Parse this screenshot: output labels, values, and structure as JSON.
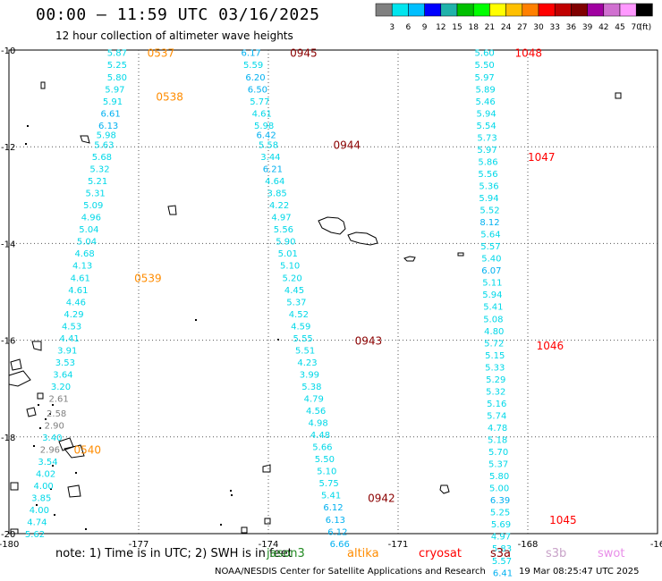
{
  "title": "00:00 – 11:59 UTC 03/16/2025",
  "subtitle": "12 hour collection of altimeter wave heights",
  "note": "note:  1) Time is in UTC; 2) SWH is in feet",
  "credit": "NOAA/NESDIS Center for Satellite Applications and Research",
  "generated": "19 Mar 08:25:47 UTC 2025",
  "satellites": [
    {
      "name": "jason3",
      "color": "#228b22"
    },
    {
      "name": "altika",
      "color": "#ff8c00"
    },
    {
      "name": "cryosat",
      "color": "#ff0000"
    },
    {
      "name": "s3a",
      "color": "#8b0000"
    },
    {
      "name": "s3b",
      "color": "#c8a2c8"
    },
    {
      "name": "swot",
      "color": "#e88ee8"
    }
  ],
  "color_scale": {
    "colors": [
      "#808080",
      "#00e5ee",
      "#00bfff",
      "#0000ff",
      "#20b2aa",
      "#00c000",
      "#00ff00",
      "#ffff00",
      "#ffc000",
      "#ff8000",
      "#ff0000",
      "#c00000",
      "#800000",
      "#a000a0",
      "#d070d0",
      "#ff99ff",
      "#000000"
    ],
    "labels": [
      "3",
      "6",
      "9",
      "12",
      "15",
      "18",
      "21",
      "24",
      "27",
      "30",
      "33",
      "36",
      "39",
      "42",
      "45",
      "70",
      "(ft)"
    ]
  },
  "axes": {
    "lon_ticks": [
      "-180",
      "-177",
      "-174",
      "-171",
      "-168",
      "-16"
    ],
    "lat_ticks": [
      "-10",
      "-12",
      "-14",
      "-16",
      "-18",
      "-20"
    ]
  },
  "chart_data": {
    "type": "map",
    "lon_range": [
      -180,
      -165
    ],
    "lat_range": [
      -20,
      -10
    ],
    "grid": true,
    "tracks": [
      {
        "label": "0537",
        "label_color": "#ff8c00",
        "label_lon": -176.8,
        "label_lat": -10.05
      },
      {
        "label": "0538",
        "label_color": "#ff8c00",
        "label_lon": -176.6,
        "label_lat": -10.95
      },
      {
        "label": "0539",
        "label_color": "#ff8c00",
        "label_lon": -177.1,
        "label_lat": -14.7
      },
      {
        "label": "0540",
        "label_color": "#ff8c00",
        "label_lon": -178.5,
        "label_lat": -18.25
      },
      {
        "label": "0945",
        "label_color": "#8b0000",
        "label_lon": -173.5,
        "label_lat": -10.05
      },
      {
        "label": "0944",
        "label_color": "#8b0000",
        "label_lon": -172.5,
        "label_lat": -11.95
      },
      {
        "label": "0943",
        "label_color": "#8b0000",
        "label_lon": -172.0,
        "label_lat": -16.0
      },
      {
        "label": "0942",
        "label_color": "#8b0000",
        "label_lon": -171.7,
        "label_lat": -19.25
      },
      {
        "label": "1048",
        "label_color": "#ff0000",
        "label_lon": -168.3,
        "label_lat": -10.05
      },
      {
        "label": "1047",
        "label_color": "#ff0000",
        "label_lon": -168.0,
        "label_lat": -12.2
      },
      {
        "label": "1046",
        "label_color": "#ff0000",
        "label_lon": -167.8,
        "label_lat": -16.1
      },
      {
        "label": "1045",
        "label_color": "#ff0000",
        "label_lon": -167.5,
        "label_lat": -19.7
      }
    ],
    "points": [
      {
        "lon": -177.5,
        "lat": -10.05,
        "v": "5.87"
      },
      {
        "lon": -177.5,
        "lat": -10.3,
        "v": "5.25"
      },
      {
        "lon": -177.5,
        "lat": -10.55,
        "v": "5.80"
      },
      {
        "lon": -177.55,
        "lat": -10.8,
        "v": "5.97"
      },
      {
        "lon": -177.6,
        "lat": -11.05,
        "v": "5.91"
      },
      {
        "lon": -177.65,
        "lat": -11.3,
        "v": "6.61"
      },
      {
        "lon": -177.7,
        "lat": -11.55,
        "v": "6.13"
      },
      {
        "lon": -177.75,
        "lat": -11.75,
        "v": "5.98"
      },
      {
        "lon": -177.8,
        "lat": -11.95,
        "v": "5.63"
      },
      {
        "lon": -177.85,
        "lat": -12.2,
        "v": "5.68"
      },
      {
        "lon": -177.9,
        "lat": -12.45,
        "v": "5.32"
      },
      {
        "lon": -177.95,
        "lat": -12.7,
        "v": "5.21"
      },
      {
        "lon": -178.0,
        "lat": -12.95,
        "v": "5.31"
      },
      {
        "lon": -178.05,
        "lat": -13.2,
        "v": "5.09"
      },
      {
        "lon": -178.1,
        "lat": -13.45,
        "v": "4.96"
      },
      {
        "lon": -178.15,
        "lat": -13.7,
        "v": "5.04"
      },
      {
        "lon": -178.2,
        "lat": -13.95,
        "v": "5.04"
      },
      {
        "lon": -178.25,
        "lat": -14.2,
        "v": "4.68"
      },
      {
        "lon": -178.3,
        "lat": -14.45,
        "v": "4.13"
      },
      {
        "lon": -178.35,
        "lat": -14.7,
        "v": "4.61"
      },
      {
        "lon": -178.4,
        "lat": -14.95,
        "v": "4.61"
      },
      {
        "lon": -178.45,
        "lat": -15.2,
        "v": "4.46"
      },
      {
        "lon": -178.5,
        "lat": -15.45,
        "v": "4.29"
      },
      {
        "lon": -178.55,
        "lat": -15.7,
        "v": "4.53"
      },
      {
        "lon": -178.6,
        "lat": -15.95,
        "v": "4.41"
      },
      {
        "lon": -178.65,
        "lat": -16.2,
        "v": "3.91"
      },
      {
        "lon": -178.7,
        "lat": -16.45,
        "v": "3.53"
      },
      {
        "lon": -178.75,
        "lat": -16.7,
        "v": "3.64"
      },
      {
        "lon": -178.8,
        "lat": -16.95,
        "v": "3.20"
      },
      {
        "lon": -178.85,
        "lat": -17.2,
        "v": "2.61"
      },
      {
        "lon": -178.9,
        "lat": -17.5,
        "v": "2.58"
      },
      {
        "lon": -178.95,
        "lat": -17.75,
        "v": "2.90"
      },
      {
        "lon": -179.0,
        "lat": -18.0,
        "v": "3.40"
      },
      {
        "lon": -179.05,
        "lat": -18.25,
        "v": "2.96"
      },
      {
        "lon": -179.1,
        "lat": -18.5,
        "v": "3.54"
      },
      {
        "lon": -179.15,
        "lat": -18.75,
        "v": "4.02"
      },
      {
        "lon": -179.2,
        "lat": -19.0,
        "v": "4.00"
      },
      {
        "lon": -179.25,
        "lat": -19.25,
        "v": "3.85"
      },
      {
        "lon": -179.3,
        "lat": -19.5,
        "v": "4.00"
      },
      {
        "lon": -179.35,
        "lat": -19.75,
        "v": "4.74"
      },
      {
        "lon": -179.4,
        "lat": -20.0,
        "v": "5.62"
      },
      {
        "lon": -174.4,
        "lat": -10.05,
        "v": "6.17"
      },
      {
        "lon": -174.35,
        "lat": -10.3,
        "v": "5.59"
      },
      {
        "lon": -174.3,
        "lat": -10.55,
        "v": "6.20"
      },
      {
        "lon": -174.25,
        "lat": -10.8,
        "v": "6.50"
      },
      {
        "lon": -174.2,
        "lat": -11.05,
        "v": "5.77"
      },
      {
        "lon": -174.15,
        "lat": -11.3,
        "v": "4.61"
      },
      {
        "lon": -174.1,
        "lat": -11.55,
        "v": "5.98"
      },
      {
        "lon": -174.05,
        "lat": -11.75,
        "v": "6.42"
      },
      {
        "lon": -174.0,
        "lat": -11.95,
        "v": "5.58"
      },
      {
        "lon": -173.95,
        "lat": -12.2,
        "v": "3.44"
      },
      {
        "lon": -173.9,
        "lat": -12.45,
        "v": "6.21"
      },
      {
        "lon": -173.85,
        "lat": -12.7,
        "v": "4.64"
      },
      {
        "lon": -173.8,
        "lat": -12.95,
        "v": "3.85"
      },
      {
        "lon": -173.75,
        "lat": -13.2,
        "v": "4.22"
      },
      {
        "lon": -173.7,
        "lat": -13.45,
        "v": "4.97"
      },
      {
        "lon": -173.65,
        "lat": -13.7,
        "v": "5.56"
      },
      {
        "lon": -173.6,
        "lat": -13.95,
        "v": "5.90"
      },
      {
        "lon": -173.55,
        "lat": -14.2,
        "v": "5.01"
      },
      {
        "lon": -173.5,
        "lat": -14.45,
        "v": "5.10"
      },
      {
        "lon": -173.45,
        "lat": -14.7,
        "v": "5.20"
      },
      {
        "lon": -173.4,
        "lat": -14.95,
        "v": "4.45"
      },
      {
        "lon": -173.35,
        "lat": -15.2,
        "v": "5.37"
      },
      {
        "lon": -173.3,
        "lat": -15.45,
        "v": "4.52"
      },
      {
        "lon": -173.25,
        "lat": -15.7,
        "v": "4.59"
      },
      {
        "lon": -173.2,
        "lat": -15.95,
        "v": "5.55"
      },
      {
        "lon": -173.15,
        "lat": -16.2,
        "v": "5.51"
      },
      {
        "lon": -173.1,
        "lat": -16.45,
        "v": "4.23"
      },
      {
        "lon": -173.05,
        "lat": -16.7,
        "v": "3.99"
      },
      {
        "lon": -173.0,
        "lat": -16.95,
        "v": "5.38"
      },
      {
        "lon": -172.95,
        "lat": -17.2,
        "v": "4.79"
      },
      {
        "lon": -172.9,
        "lat": -17.45,
        "v": "4.56"
      },
      {
        "lon": -172.85,
        "lat": -17.7,
        "v": "4.98"
      },
      {
        "lon": -172.8,
        "lat": -17.95,
        "v": "4.48"
      },
      {
        "lon": -172.75,
        "lat": -18.2,
        "v": "5.66"
      },
      {
        "lon": -172.7,
        "lat": -18.45,
        "v": "5.50"
      },
      {
        "lon": -172.65,
        "lat": -18.7,
        "v": "5.10"
      },
      {
        "lon": -172.6,
        "lat": -18.95,
        "v": "5.75"
      },
      {
        "lon": -172.55,
        "lat": -19.2,
        "v": "5.41"
      },
      {
        "lon": -172.5,
        "lat": -19.45,
        "v": "6.12"
      },
      {
        "lon": -172.45,
        "lat": -19.7,
        "v": "6.13"
      },
      {
        "lon": -172.4,
        "lat": -19.95,
        "v": "6.12"
      },
      {
        "lon": -172.35,
        "lat": -20.2,
        "v": "6.66"
      },
      {
        "lon": -169.0,
        "lat": -10.05,
        "v": "5.60"
      },
      {
        "lon": -169.0,
        "lat": -10.3,
        "v": "5.50"
      },
      {
        "lon": -169.0,
        "lat": -10.55,
        "v": "5.97"
      },
      {
        "lon": -168.98,
        "lat": -10.8,
        "v": "5.89"
      },
      {
        "lon": -168.98,
        "lat": -11.05,
        "v": "5.46"
      },
      {
        "lon": -168.96,
        "lat": -11.3,
        "v": "5.94"
      },
      {
        "lon": -168.96,
        "lat": -11.55,
        "v": "5.54"
      },
      {
        "lon": -168.94,
        "lat": -11.8,
        "v": "5.73"
      },
      {
        "lon": -168.94,
        "lat": -12.05,
        "v": "5.97"
      },
      {
        "lon": -168.92,
        "lat": -12.3,
        "v": "5.86"
      },
      {
        "lon": -168.92,
        "lat": -12.55,
        "v": "5.56"
      },
      {
        "lon": -168.9,
        "lat": -12.8,
        "v": "5.36"
      },
      {
        "lon": -168.9,
        "lat": -13.05,
        "v": "5.94"
      },
      {
        "lon": -168.88,
        "lat": -13.3,
        "v": "5.52"
      },
      {
        "lon": -168.88,
        "lat": -13.55,
        "v": "8.12"
      },
      {
        "lon": -168.86,
        "lat": -13.8,
        "v": "5.64"
      },
      {
        "lon": -168.86,
        "lat": -14.05,
        "v": "5.57"
      },
      {
        "lon": -168.84,
        "lat": -14.3,
        "v": "5.40"
      },
      {
        "lon": -168.84,
        "lat": -14.55,
        "v": "6.07"
      },
      {
        "lon": -168.82,
        "lat": -14.8,
        "v": "5.11"
      },
      {
        "lon": -168.82,
        "lat": -15.05,
        "v": "5.94"
      },
      {
        "lon": -168.8,
        "lat": -15.3,
        "v": "5.41"
      },
      {
        "lon": -168.8,
        "lat": -15.55,
        "v": "5.08"
      },
      {
        "lon": -168.78,
        "lat": -15.8,
        "v": "4.80"
      },
      {
        "lon": -168.78,
        "lat": -16.05,
        "v": "5.72"
      },
      {
        "lon": -168.76,
        "lat": -16.3,
        "v": "5.15"
      },
      {
        "lon": -168.76,
        "lat": -16.55,
        "v": "5.33"
      },
      {
        "lon": -168.74,
        "lat": -16.8,
        "v": "5.29"
      },
      {
        "lon": -168.74,
        "lat": -17.05,
        "v": "5.32"
      },
      {
        "lon": -168.72,
        "lat": -17.3,
        "v": "5.16"
      },
      {
        "lon": -168.72,
        "lat": -17.55,
        "v": "5.74"
      },
      {
        "lon": -168.7,
        "lat": -17.8,
        "v": "4.78"
      },
      {
        "lon": -168.7,
        "lat": -18.05,
        "v": "5.18"
      },
      {
        "lon": -168.68,
        "lat": -18.3,
        "v": "5.70"
      },
      {
        "lon": -168.68,
        "lat": -18.55,
        "v": "5.37"
      },
      {
        "lon": -168.66,
        "lat": -18.8,
        "v": "5.80"
      },
      {
        "lon": -168.66,
        "lat": -19.05,
        "v": "5.00"
      },
      {
        "lon": -168.64,
        "lat": -19.3,
        "v": "6.39"
      },
      {
        "lon": -168.64,
        "lat": -19.55,
        "v": "5.25"
      },
      {
        "lon": -168.62,
        "lat": -19.8,
        "v": "5.69"
      },
      {
        "lon": -168.62,
        "lat": -20.05,
        "v": "4.97"
      },
      {
        "lon": -168.6,
        "lat": -20.3,
        "v": "5.83"
      },
      {
        "lon": -168.6,
        "lat": -20.55,
        "v": "5.57"
      },
      {
        "lon": -168.58,
        "lat": -20.8,
        "v": "6.41"
      }
    ]
  }
}
